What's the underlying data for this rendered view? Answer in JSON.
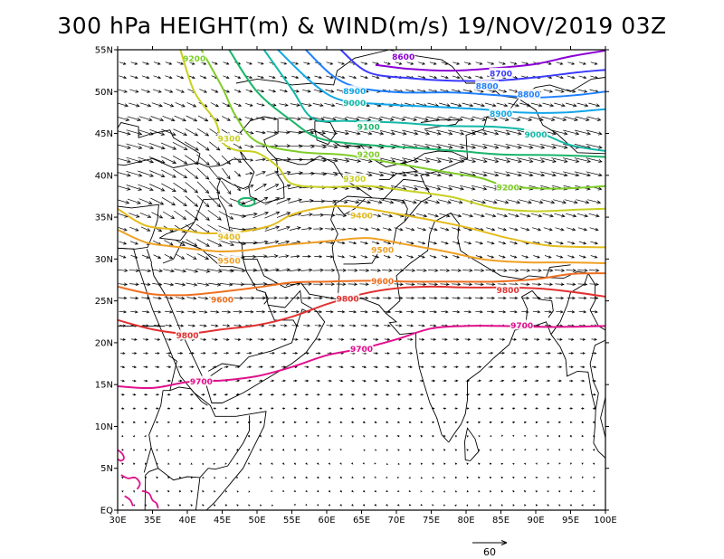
{
  "title": "300 hPa HEIGHT(m) & WIND(m/s) 19/NOV/2019 03Z",
  "map": {
    "lon_range": [
      30,
      100
    ],
    "lat_range": [
      0,
      55
    ],
    "lon_ticks": [
      "30E",
      "35E",
      "40E",
      "45E",
      "50E",
      "55E",
      "60E",
      "65E",
      "70E",
      "75E",
      "80E",
      "85E",
      "90E",
      "95E",
      "100E"
    ],
    "lat_ticks": [
      "EQ",
      "5N",
      "10N",
      "15N",
      "20N",
      "25N",
      "30N",
      "35N",
      "40N",
      "45N",
      "50N",
      "55N"
    ],
    "lon_tick_values": [
      30,
      35,
      40,
      45,
      50,
      55,
      60,
      65,
      70,
      75,
      80,
      85,
      90,
      95,
      100
    ],
    "lat_tick_values": [
      0,
      5,
      10,
      15,
      20,
      25,
      30,
      35,
      40,
      45,
      50,
      55
    ]
  },
  "wind_reference": {
    "label": "60",
    "speed": 60,
    "units": "m/s"
  },
  "contours": [
    {
      "level": "8600",
      "color": "#8b00d4",
      "points": [
        [
          67,
          53.2
        ],
        [
          72,
          52.7
        ],
        [
          78,
          52.5
        ],
        [
          84,
          52.8
        ],
        [
          90,
          53.3
        ],
        [
          95,
          54.2
        ],
        [
          100,
          54.9
        ]
      ],
      "labels": [
        [
          71,
          54.2
        ]
      ]
    },
    {
      "level": "8700",
      "color": "#3a3aff",
      "points": [
        [
          62,
          55
        ],
        [
          66,
          52.3
        ],
        [
          72,
          51.6
        ],
        [
          78,
          51.3
        ],
        [
          84,
          51.3
        ],
        [
          90,
          51.7
        ],
        [
          96,
          52.3
        ],
        [
          100,
          52.6
        ]
      ],
      "labels": [
        [
          85,
          52.2
        ]
      ]
    },
    {
      "level": "8800",
      "color": "#1e7fff",
      "points": [
        [
          57,
          55
        ],
        [
          61,
          51.8
        ],
        [
          65,
          50.4
        ],
        [
          71,
          49.9
        ],
        [
          78,
          49.9
        ],
        [
          84,
          49.6
        ],
        [
          90,
          49.3
        ],
        [
          96,
          49.6
        ],
        [
          100,
          50
        ]
      ],
      "labels": [
        [
          83,
          50.7
        ],
        [
          89,
          49.7
        ]
      ]
    },
    {
      "level": "8900",
      "color": "#11a6e8",
      "points": [
        [
          53,
          55
        ],
        [
          58,
          51
        ],
        [
          62,
          49
        ],
        [
          68,
          48.5
        ],
        [
          75,
          48.2
        ],
        [
          82,
          47.9
        ],
        [
          88,
          47.5
        ],
        [
          94,
          47.5
        ],
        [
          100,
          47.9
        ]
      ],
      "labels": [
        [
          64,
          50.1
        ],
        [
          85,
          47.4
        ]
      ]
    },
    {
      "level": "9000",
      "color": "#12b8a8",
      "points": [
        [
          51,
          55
        ],
        [
          55,
          50.3
        ],
        [
          58,
          46.8
        ],
        [
          63,
          46.5
        ],
        [
          70,
          46.3
        ],
        [
          77,
          45.9
        ],
        [
          84,
          45.8
        ],
        [
          90,
          45.2
        ],
        [
          95,
          43.6
        ],
        [
          100,
          42.9
        ]
      ],
      "labels": [
        [
          64,
          48.7
        ],
        [
          90,
          44.9
        ]
      ]
    },
    {
      "level": "9100",
      "color": "#19b56a",
      "points": [
        [
          46,
          55
        ],
        [
          50,
          50
        ],
        [
          55,
          46.5
        ],
        [
          59,
          44.4
        ],
        [
          65,
          43.7
        ],
        [
          72,
          43.3
        ],
        [
          79,
          42.9
        ],
        [
          85,
          42.5
        ],
        [
          93,
          42.4
        ],
        [
          100,
          42.2
        ]
      ],
      "labels": [
        [
          66,
          45.8
        ]
      ]
    },
    {
      "level": "9200",
      "color": "#7fcc28",
      "points": [
        [
          42,
          55
        ],
        [
          45,
          50.5
        ],
        [
          47,
          47
        ],
        [
          50,
          44
        ],
        [
          56,
          42.8
        ],
        [
          63,
          42.4
        ],
        [
          70,
          41.4
        ],
        [
          77,
          40.4
        ],
        [
          82,
          39.7
        ],
        [
          86,
          38.7
        ],
        [
          93,
          38.4
        ],
        [
          100,
          38.7
        ]
      ],
      "labels": [
        [
          41,
          54
        ],
        [
          66,
          42.5
        ],
        [
          86,
          38.6
        ]
      ]
    },
    {
      "level": "9300",
      "color": "#c8d022",
      "points": [
        [
          39,
          55
        ],
        [
          41,
          50
        ],
        [
          44,
          46.5
        ],
        [
          45,
          44
        ],
        [
          47,
          43
        ],
        [
          50,
          42.7
        ],
        [
          53,
          41
        ],
        [
          55,
          39
        ],
        [
          60,
          38.6
        ],
        [
          66,
          38.7
        ],
        [
          72,
          38.1
        ],
        [
          78,
          37.4
        ],
        [
          84,
          36.1
        ],
        [
          90,
          35.7
        ],
        [
          96,
          35.9
        ],
        [
          100,
          36
        ]
      ],
      "labels": [
        [
          46,
          44.4
        ],
        [
          64,
          39.6
        ]
      ]
    },
    {
      "level": "9400",
      "color": "#e4bc1e",
      "points": [
        [
          30,
          36
        ],
        [
          34,
          34
        ],
        [
          39,
          33.5
        ],
        [
          42,
          33.1
        ],
        [
          45,
          33.1
        ],
        [
          48,
          33.3
        ],
        [
          52,
          34
        ],
        [
          55,
          35.3
        ],
        [
          59,
          36.1
        ],
        [
          63,
          36.3
        ],
        [
          68,
          35.7
        ],
        [
          74,
          34.8
        ],
        [
          80,
          33.8
        ],
        [
          86,
          32.5
        ],
        [
          92,
          31.6
        ],
        [
          100,
          31.4
        ]
      ],
      "labels": [
        [
          46,
          32.7
        ],
        [
          65,
          35.2
        ]
      ]
    },
    {
      "level": "9500",
      "color": "#f0a024",
      "points": [
        [
          30,
          33.5
        ],
        [
          34,
          32
        ],
        [
          38,
          31.5
        ],
        [
          42,
          31.1
        ],
        [
          45,
          30.9
        ],
        [
          49,
          31.1
        ],
        [
          53,
          31.6
        ],
        [
          57,
          31.9
        ],
        [
          61,
          32.2
        ],
        [
          66,
          32.5
        ],
        [
          71,
          31.8
        ],
        [
          77,
          30.9
        ],
        [
          83,
          29.9
        ],
        [
          89,
          29.6
        ],
        [
          94,
          29.6
        ],
        [
          100,
          29.5
        ]
      ],
      "labels": [
        [
          46,
          29.8
        ],
        [
          68,
          31.1
        ]
      ]
    },
    {
      "level": "9600",
      "color": "#ee6f20",
      "points": [
        [
          30,
          26.7
        ],
        [
          35,
          25.8
        ],
        [
          40,
          25.7
        ],
        [
          45,
          26.1
        ],
        [
          50,
          26.6
        ],
        [
          55,
          27.2
        ],
        [
          60,
          27.3
        ],
        [
          66,
          27.4
        ],
        [
          72,
          27.3
        ],
        [
          78,
          27.3
        ],
        [
          84,
          27.3
        ],
        [
          90,
          27.6
        ],
        [
          95,
          28.2
        ],
        [
          100,
          28.3
        ]
      ],
      "labels": [
        [
          45,
          25.2
        ],
        [
          68,
          27.4
        ]
      ]
    },
    {
      "level": "9800",
      "color": "#e23131",
      "points": [
        [
          30,
          22.7
        ],
        [
          35,
          21.6
        ],
        [
          40,
          21.1
        ],
        [
          45,
          21.6
        ],
        [
          50,
          22.1
        ],
        [
          55,
          23.1
        ],
        [
          60,
          24.6
        ],
        [
          65,
          25.8
        ],
        [
          70,
          26.5
        ],
        [
          75,
          26.7
        ],
        [
          80,
          26.6
        ],
        [
          85,
          26.6
        ],
        [
          90,
          26.5
        ],
        [
          95,
          26.1
        ],
        [
          100,
          25.5
        ]
      ],
      "labels": [
        [
          40,
          20.9
        ],
        [
          63,
          25.3
        ],
        [
          86,
          26.3
        ]
      ]
    },
    {
      "level": "9700",
      "color": "#e0108c",
      "points": [
        [
          30,
          14.8
        ],
        [
          35,
          14.6
        ],
        [
          40,
          15.3
        ],
        [
          45,
          15.5
        ],
        [
          50,
          16
        ],
        [
          55,
          17.1
        ],
        [
          60,
          18.5
        ],
        [
          65,
          19.3
        ],
        [
          70,
          20.4
        ],
        [
          75,
          21.7
        ],
        [
          80,
          22
        ],
        [
          85,
          22
        ],
        [
          90,
          21.9
        ],
        [
          95,
          21.9
        ],
        [
          100,
          22
        ]
      ],
      "labels": [
        [
          42,
          15.4
        ],
        [
          65,
          19.3
        ],
        [
          88,
          22.1
        ]
      ]
    }
  ],
  "colors": {
    "coastline": "#000000",
    "frame": "#000000",
    "wind_vector": "#000000",
    "low_center": "#19b56a"
  }
}
